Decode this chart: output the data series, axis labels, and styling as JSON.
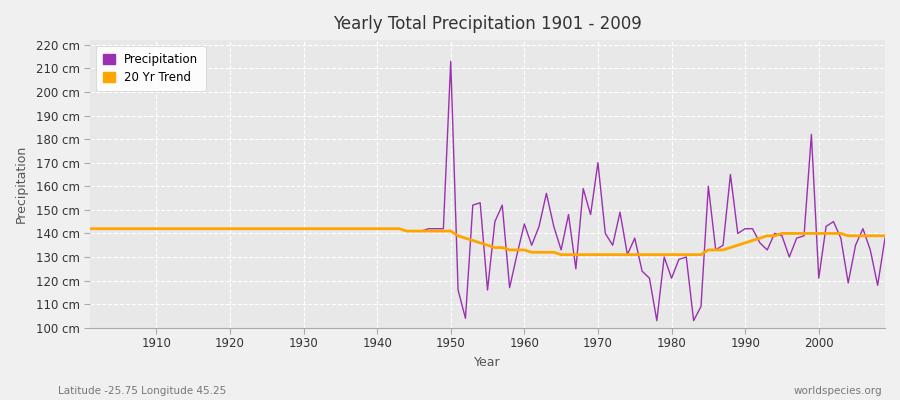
{
  "title": "Yearly Total Precipitation 1901 - 2009",
  "xlabel": "Year",
  "ylabel": "Precipitation",
  "lat_lon_label": "Latitude -25.75 Longitude 45.25",
  "watermark": "worldspecies.org",
  "bg_color": "#f0f0f0",
  "plot_bg_color": "#e8e8e8",
  "precip_color": "#9b30b0",
  "trend_color": "#ffa500",
  "precip_label": "Precipitation",
  "trend_label": "20 Yr Trend",
  "ylim": [
    100,
    222
  ],
  "ytick_step": 10,
  "xlim": [
    1901,
    2009
  ],
  "xticks": [
    1910,
    1920,
    1930,
    1940,
    1950,
    1960,
    1970,
    1980,
    1990,
    2000
  ],
  "years": [
    1901,
    1902,
    1903,
    1904,
    1905,
    1906,
    1907,
    1908,
    1909,
    1910,
    1911,
    1912,
    1913,
    1914,
    1915,
    1916,
    1917,
    1918,
    1919,
    1920,
    1921,
    1922,
    1923,
    1924,
    1925,
    1926,
    1927,
    1928,
    1929,
    1930,
    1931,
    1932,
    1933,
    1934,
    1935,
    1936,
    1937,
    1938,
    1939,
    1940,
    1941,
    1942,
    1943,
    1944,
    1945,
    1946,
    1947,
    1948,
    1949,
    1950,
    1951,
    1952,
    1953,
    1954,
    1955,
    1956,
    1957,
    1958,
    1959,
    1960,
    1961,
    1962,
    1963,
    1964,
    1965,
    1966,
    1967,
    1968,
    1969,
    1970,
    1971,
    1972,
    1973,
    1974,
    1975,
    1976,
    1977,
    1978,
    1979,
    1980,
    1981,
    1982,
    1983,
    1984,
    1985,
    1986,
    1987,
    1988,
    1989,
    1990,
    1991,
    1992,
    1993,
    1994,
    1995,
    1996,
    1997,
    1998,
    1999,
    2000,
    2001,
    2002,
    2003,
    2004,
    2005,
    2006,
    2007,
    2008,
    2009
  ],
  "precip": [
    142,
    142,
    142,
    142,
    142,
    142,
    142,
    142,
    142,
    142,
    142,
    142,
    142,
    142,
    142,
    142,
    142,
    142,
    142,
    142,
    142,
    142,
    142,
    142,
    142,
    142,
    142,
    142,
    142,
    142,
    142,
    142,
    142,
    142,
    142,
    142,
    142,
    142,
    142,
    142,
    142,
    142,
    142,
    141,
    141,
    141,
    142,
    142,
    142,
    213,
    116,
    104,
    152,
    153,
    116,
    145,
    152,
    117,
    131,
    144,
    135,
    143,
    157,
    143,
    133,
    148,
    125,
    159,
    148,
    170,
    140,
    135,
    149,
    131,
    138,
    124,
    121,
    103,
    130,
    121,
    129,
    130,
    103,
    109,
    160,
    133,
    135,
    165,
    140,
    142,
    142,
    136,
    133,
    140,
    139,
    130,
    138,
    139,
    182,
    121,
    143,
    145,
    138,
    119,
    135,
    142,
    133,
    118,
    138
  ],
  "trend": [
    142,
    142,
    142,
    142,
    142,
    142,
    142,
    142,
    142,
    142,
    142,
    142,
    142,
    142,
    142,
    142,
    142,
    142,
    142,
    142,
    142,
    142,
    142,
    142,
    142,
    142,
    142,
    142,
    142,
    142,
    142,
    142,
    142,
    142,
    142,
    142,
    142,
    142,
    142,
    142,
    142,
    142,
    142,
    141,
    141,
    141,
    141,
    141,
    141,
    141,
    139,
    138,
    137,
    136,
    135,
    134,
    134,
    133,
    133,
    133,
    132,
    132,
    132,
    132,
    131,
    131,
    131,
    131,
    131,
    131,
    131,
    131,
    131,
    131,
    131,
    131,
    131,
    131,
    131,
    131,
    131,
    131,
    131,
    131,
    133,
    133,
    133,
    134,
    135,
    136,
    137,
    138,
    139,
    139,
    140,
    140,
    140,
    140,
    140,
    140,
    140,
    140,
    140,
    139,
    139,
    139,
    139,
    139,
    139
  ]
}
